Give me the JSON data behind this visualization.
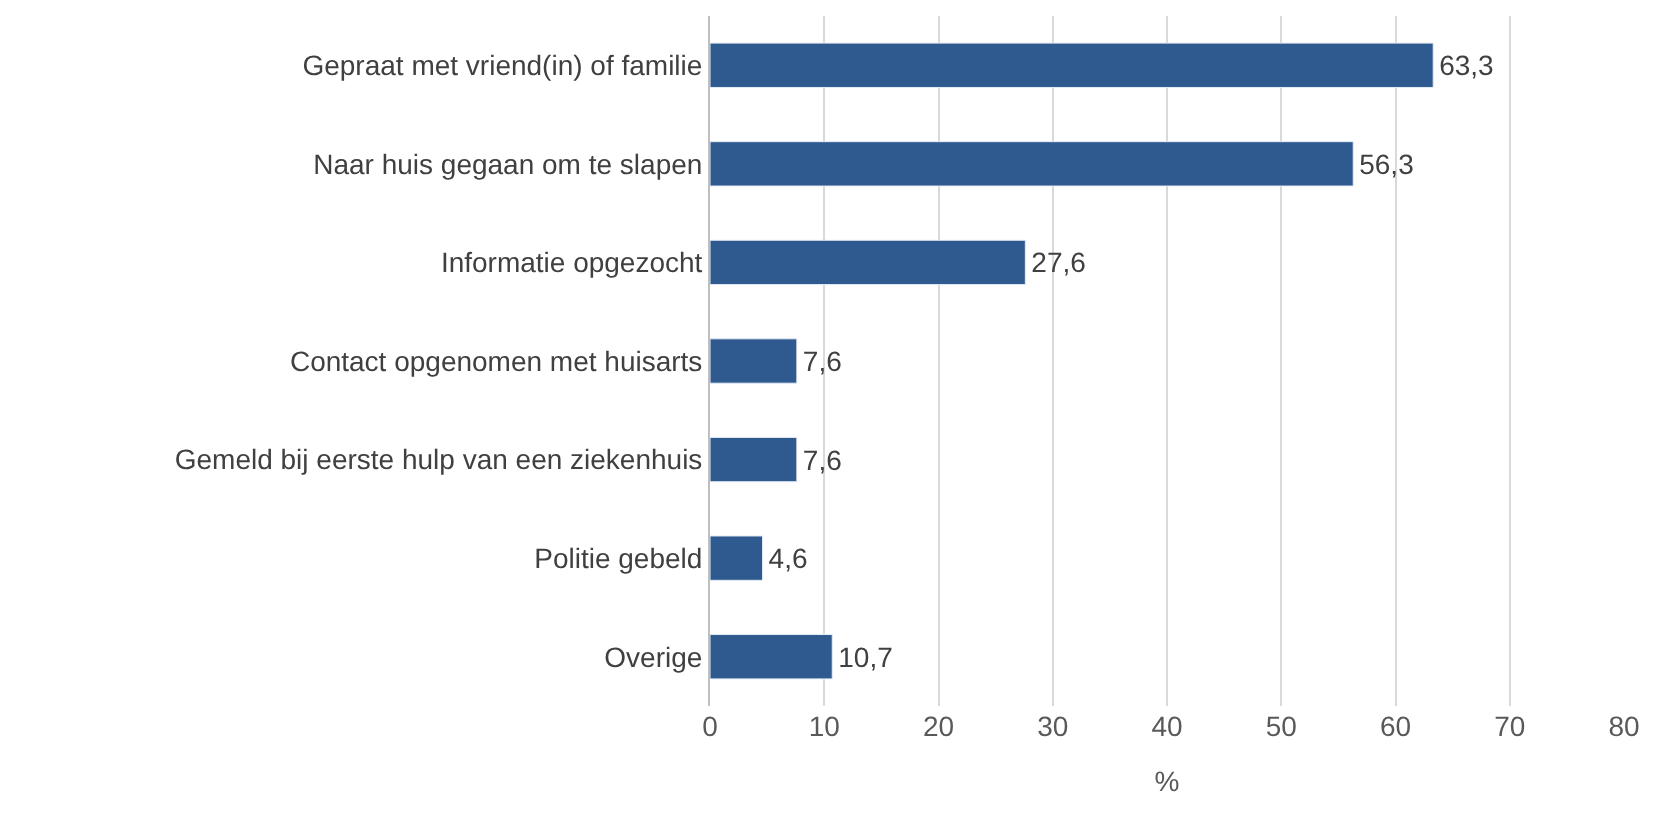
{
  "chart_data": {
    "type": "bar",
    "orientation": "horizontal",
    "xlabel": "%",
    "categories": [
      "Gepraat met vriend(in) of familie",
      "Naar huis gegaan om te slapen",
      "Informatie opgezocht",
      "Contact opgenomen met huisarts",
      "Gemeld bij eerste hulp van een ziekenhuis",
      "Politie gebeld",
      "Overige"
    ],
    "values": [
      63.3,
      56.3,
      27.6,
      7.6,
      7.6,
      4.6,
      10.7
    ],
    "value_labels": [
      "63,3",
      "56,3",
      "27,6",
      "7,6",
      "7,6",
      "4,6",
      "10,7"
    ],
    "color": "#2f5a8f",
    "xlim": [
      0,
      80
    ],
    "xticks": [
      0,
      10,
      20,
      30,
      40,
      50,
      60,
      70,
      80
    ],
    "grid": "x",
    "legend": false
  }
}
